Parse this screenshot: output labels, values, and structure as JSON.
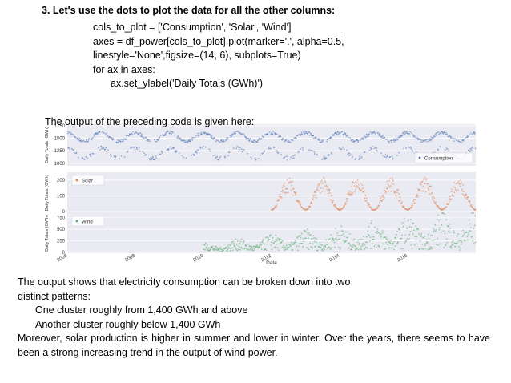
{
  "heading": "3. Let's use the dots to plot the data for all the other columns:",
  "code_lines": [
    "cols_to_plot = ['Consumption', 'Solar', 'Wind']",
    "axes = df_power[cols_to_plot].plot(marker='.', alpha=0.5,",
    "linestyle='None',figsize=(14, 6), subplots=True)",
    "for ax in axes:",
    "ax.set_ylabel('Daily Totals (GWh)')"
  ],
  "intro_text": "The output of the preceding code is given here:",
  "chart_data": [
    {
      "type": "scatter",
      "series": [
        {
          "name": "Consumption",
          "color": "#4c72b0"
        }
      ],
      "ylabel": "Daily Totals (GWh)",
      "yticks": [
        "1000",
        "1250",
        "1500",
        "1750"
      ],
      "ylim": [
        950,
        1780
      ],
      "xlim": [
        "2006-01-01",
        "2018-01-01"
      ],
      "clusters": [
        {
          "label": "upper",
          "min": 1400,
          "max": 1650
        },
        {
          "label": "lower",
          "min": 1050,
          "max": 1350
        }
      ]
    },
    {
      "type": "scatter",
      "series": [
        {
          "name": "Solar",
          "color": "#dd8452"
        }
      ],
      "ylabel": "Daily Totals (GWh)",
      "yticks": [
        "0",
        "100",
        "200"
      ],
      "ylim": [
        -10,
        250
      ],
      "xlim": [
        "2006-01-01",
        "2018-01-01"
      ],
      "data_start": "2012-01-01",
      "summer_peak": 220,
      "winter_low": 15
    },
    {
      "type": "scatter",
      "series": [
        {
          "name": "Wind",
          "color": "#55a868"
        }
      ],
      "ylabel": "Daily Totals (GWh)",
      "yticks": [
        "0",
        "250",
        "500",
        "750"
      ],
      "ylim": [
        -20,
        850
      ],
      "xlim": [
        "2006-01-01",
        "2018-01-01"
      ],
      "data_start": "2010-01-01"
    }
  ],
  "x_axis": {
    "label": "Date",
    "ticks": [
      "2006",
      "2008",
      "2010",
      "2012",
      "2014",
      "2016"
    ]
  },
  "paragraph": {
    "line1": "The output shows that electricity consumption can be broken down into two",
    "line2": "distinct patterns:",
    "line3": "One cluster roughly from 1,400 GWh and above",
    "line4": "Another cluster roughly below 1,400 GWh",
    "line5": "Moreover, solar production is higher in summer and lower in winter. Over the years, there seems to have been a strong increasing trend in the output of wind power."
  }
}
